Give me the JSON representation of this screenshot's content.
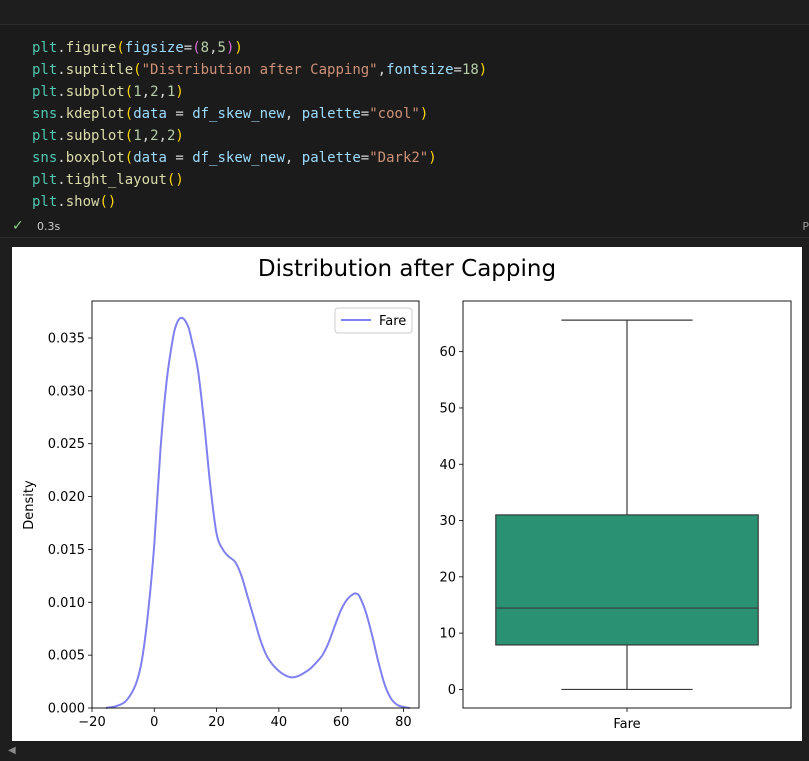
{
  "code_lines": [
    [
      [
        "var",
        "plt"
      ],
      [
        "op",
        "."
      ],
      [
        "fn",
        "figure"
      ],
      [
        "p1",
        "("
      ],
      [
        "param",
        "figsize"
      ],
      [
        "op",
        "="
      ],
      [
        "p2",
        "("
      ],
      [
        "num",
        "8"
      ],
      [
        "op",
        ","
      ],
      [
        "num",
        "5"
      ],
      [
        "p2",
        ")"
      ],
      [
        "p1",
        ")"
      ]
    ],
    [
      [
        "var",
        "plt"
      ],
      [
        "op",
        "."
      ],
      [
        "fn",
        "suptitle"
      ],
      [
        "p1",
        "("
      ],
      [
        "str",
        "\"Distribution after Capping\""
      ],
      [
        "op",
        ","
      ],
      [
        "param",
        "fontsize"
      ],
      [
        "op",
        "="
      ],
      [
        "num",
        "18"
      ],
      [
        "p1",
        ")"
      ]
    ],
    [
      [
        "var",
        "plt"
      ],
      [
        "op",
        "."
      ],
      [
        "fn",
        "subplot"
      ],
      [
        "p1",
        "("
      ],
      [
        "num",
        "1"
      ],
      [
        "op",
        ","
      ],
      [
        "num",
        "2"
      ],
      [
        "op",
        ","
      ],
      [
        "num",
        "1"
      ],
      [
        "p1",
        ")"
      ]
    ],
    [
      [
        "var",
        "sns"
      ],
      [
        "op",
        "."
      ],
      [
        "fn",
        "kdeplot"
      ],
      [
        "p1",
        "("
      ],
      [
        "param",
        "data"
      ],
      [
        "op",
        " = "
      ],
      [
        "param",
        "df_skew_new"
      ],
      [
        "op",
        ", "
      ],
      [
        "param",
        "palette"
      ],
      [
        "op",
        "="
      ],
      [
        "str",
        "\"cool\""
      ],
      [
        "p1",
        ")"
      ]
    ],
    [
      [
        "var",
        "plt"
      ],
      [
        "op",
        "."
      ],
      [
        "fn",
        "subplot"
      ],
      [
        "p1",
        "("
      ],
      [
        "num",
        "1"
      ],
      [
        "op",
        ","
      ],
      [
        "num",
        "2"
      ],
      [
        "op",
        ","
      ],
      [
        "num",
        "2"
      ],
      [
        "p1",
        ")"
      ]
    ],
    [
      [
        "var",
        "sns"
      ],
      [
        "op",
        "."
      ],
      [
        "fn",
        "boxplot"
      ],
      [
        "p1",
        "("
      ],
      [
        "param",
        "data"
      ],
      [
        "op",
        " = "
      ],
      [
        "param",
        "df_skew_new"
      ],
      [
        "op",
        ", "
      ],
      [
        "param",
        "palette"
      ],
      [
        "op",
        "="
      ],
      [
        "str",
        "\"Dark2\""
      ],
      [
        "p1",
        ")"
      ]
    ],
    [
      [
        "var",
        "plt"
      ],
      [
        "op",
        "."
      ],
      [
        "fn",
        "tight_layout"
      ],
      [
        "p1",
        "()"
      ]
    ],
    [
      [
        "var",
        "plt"
      ],
      [
        "op",
        "."
      ],
      [
        "fn",
        "show"
      ],
      [
        "p1",
        "()"
      ]
    ]
  ],
  "status": {
    "check": "✓",
    "time": "0.3s",
    "edge": "P"
  },
  "colors": {
    "kde_line": "#8080f0",
    "box_fill": "#2a9173",
    "axis": "#000000"
  },
  "chart_data": [
    {
      "type": "line",
      "title": "Distribution after Capping",
      "ylabel": "Density",
      "xlim": [
        -20,
        85
      ],
      "ylim": [
        0,
        0.0385
      ],
      "xticks": [
        -20,
        0,
        20,
        40,
        60,
        80
      ],
      "xtick_labels": [
        "−20",
        "0",
        "20",
        "40",
        "60",
        "80"
      ],
      "yticks": [
        0,
        0.005,
        0.01,
        0.015,
        0.02,
        0.025,
        0.03,
        0.035
      ],
      "ytick_labels": [
        "0.000",
        "0.005",
        "0.010",
        "0.015",
        "0.020",
        "0.025",
        "0.030",
        "0.035"
      ],
      "legend": {
        "position": "top-right",
        "entries": [
          "Fare"
        ]
      },
      "series": [
        {
          "name": "Fare",
          "x": [
            -15.5,
            -12,
            -9,
            -6,
            -4,
            -2,
            0,
            2,
            4,
            6,
            7,
            8,
            9,
            10,
            11,
            12,
            14,
            16,
            18,
            20,
            22,
            24,
            26,
            28,
            30,
            32,
            34,
            36,
            38,
            40,
            42,
            44,
            46,
            48,
            50,
            52,
            54,
            56,
            58,
            60,
            62,
            64,
            65,
            66,
            68,
            70,
            72,
            74,
            76,
            78,
            80,
            82
          ],
          "y": [
            0.0,
            0.0002,
            0.0007,
            0.0022,
            0.0045,
            0.009,
            0.0155,
            0.0245,
            0.031,
            0.035,
            0.0362,
            0.0368,
            0.0369,
            0.0366,
            0.036,
            0.0348,
            0.032,
            0.027,
            0.021,
            0.0165,
            0.015,
            0.0143,
            0.0138,
            0.0125,
            0.0105,
            0.0085,
            0.0065,
            0.005,
            0.0041,
            0.0035,
            0.0031,
            0.0029,
            0.003,
            0.0033,
            0.0037,
            0.0043,
            0.005,
            0.0062,
            0.0078,
            0.0093,
            0.0103,
            0.0108,
            0.0108,
            0.0105,
            0.009,
            0.0068,
            0.0043,
            0.0022,
            0.0009,
            0.0003,
            0.0001,
            0.0
          ]
        }
      ]
    },
    {
      "type": "box",
      "ylim": [
        -3.3,
        69
      ],
      "yticks": [
        0,
        10,
        20,
        30,
        40,
        50,
        60
      ],
      "ytick_labels": [
        "0",
        "10",
        "20",
        "30",
        "40",
        "50",
        "60"
      ],
      "categories": [
        "Fare"
      ],
      "boxes": [
        {
          "name": "Fare",
          "whisker_low": 0,
          "q1": 7.9,
          "median": 14.45,
          "q3": 31.0,
          "whisker_high": 65.6
        }
      ]
    }
  ]
}
